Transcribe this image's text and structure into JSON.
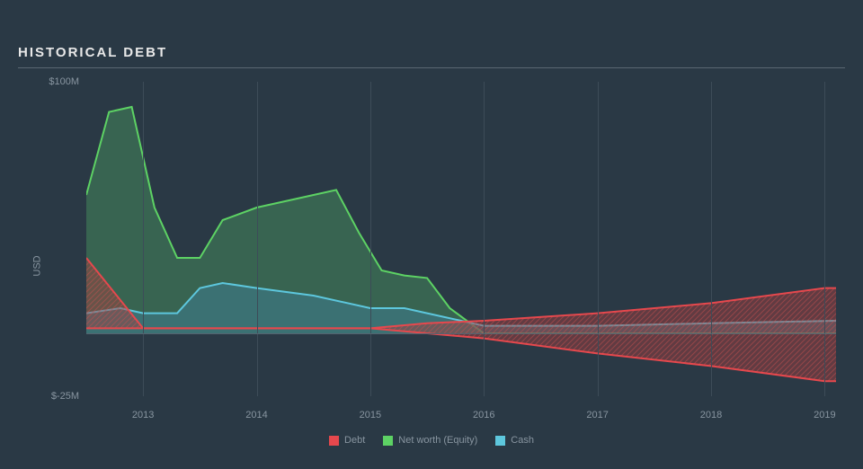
{
  "title": "HISTORICAL DEBT",
  "chart": {
    "type": "area",
    "background_color": "#2a3945",
    "grid_color": "#3d4c58",
    "baseline_color": "#556370",
    "text_color": "#8895a0",
    "title_color": "#e8e8e8",
    "title_fontsize": 15,
    "label_fontsize": 11,
    "ylabel": "USD",
    "ylim": [
      -25,
      100
    ],
    "yticks": [
      {
        "value": 100,
        "label": "$100M"
      },
      {
        "value": -25,
        "label": "$-25M"
      }
    ],
    "xlim": [
      2012.5,
      2019.1
    ],
    "xticks": [
      {
        "value": 2013,
        "label": "2013"
      },
      {
        "value": 2014,
        "label": "2014"
      },
      {
        "value": 2015,
        "label": "2015"
      },
      {
        "value": 2016,
        "label": "2016"
      },
      {
        "value": 2017,
        "label": "2017"
      },
      {
        "value": 2018,
        "label": "2018"
      },
      {
        "value": 2019,
        "label": "2019"
      }
    ],
    "baseline_value": 0,
    "series": [
      {
        "name": "Net worth (Equity)",
        "stroke": "#5dd264",
        "fill": "#3d7355",
        "fill_opacity": 0.75,
        "stroke_width": 2,
        "x": [
          2012.5,
          2012.7,
          2012.9,
          2013.1,
          2013.3,
          2013.5,
          2013.7,
          2014.0,
          2014.5,
          2014.7,
          2014.9,
          2015.1,
          2015.3,
          2015.5,
          2015.7,
          2016.0,
          2019.1
        ],
        "y": [
          55,
          88,
          90,
          50,
          30,
          30,
          45,
          50,
          55,
          57,
          40,
          25,
          23,
          22,
          10,
          0,
          0
        ]
      },
      {
        "name": "Cash",
        "stroke": "#5dc7dd",
        "fill": "#3e7a8a",
        "fill_opacity": 0.6,
        "stroke_width": 2,
        "x": [
          2012.5,
          2012.8,
          2013.0,
          2013.3,
          2013.5,
          2013.7,
          2014.0,
          2014.5,
          2015.0,
          2015.3,
          2015.5,
          2016.0,
          2017.0,
          2018.0,
          2019.1
        ],
        "y": [
          8,
          10,
          8,
          8,
          18,
          20,
          18,
          15,
          10,
          10,
          8,
          3,
          3,
          4,
          5
        ]
      },
      {
        "name": "Debt",
        "stroke": "#e6484d",
        "fill": "#a53d3f",
        "fill_opacity": 0.45,
        "stroke_width": 2,
        "hatched": true,
        "hatch_color": "#c85050",
        "x_top": [
          2012.5,
          2013.0,
          2014.0,
          2015.0,
          2015.5,
          2016.0,
          2017.0,
          2018.0,
          2019.0,
          2019.1
        ],
        "y_top": [
          30,
          2,
          2,
          2,
          4,
          5,
          8,
          12,
          18,
          18
        ],
        "x_bottom": [
          2012.5,
          2013.0,
          2014.0,
          2015.0,
          2015.5,
          2016.0,
          2017.0,
          2018.0,
          2019.0,
          2019.1
        ],
        "y_bottom": [
          2,
          2,
          2,
          2,
          0,
          -2,
          -8,
          -13,
          -19,
          -19
        ]
      }
    ],
    "legend": [
      {
        "label": "Debt",
        "color": "#e6484d"
      },
      {
        "label": "Net worth (Equity)",
        "color": "#5dd264"
      },
      {
        "label": "Cash",
        "color": "#5dc7dd"
      }
    ]
  }
}
